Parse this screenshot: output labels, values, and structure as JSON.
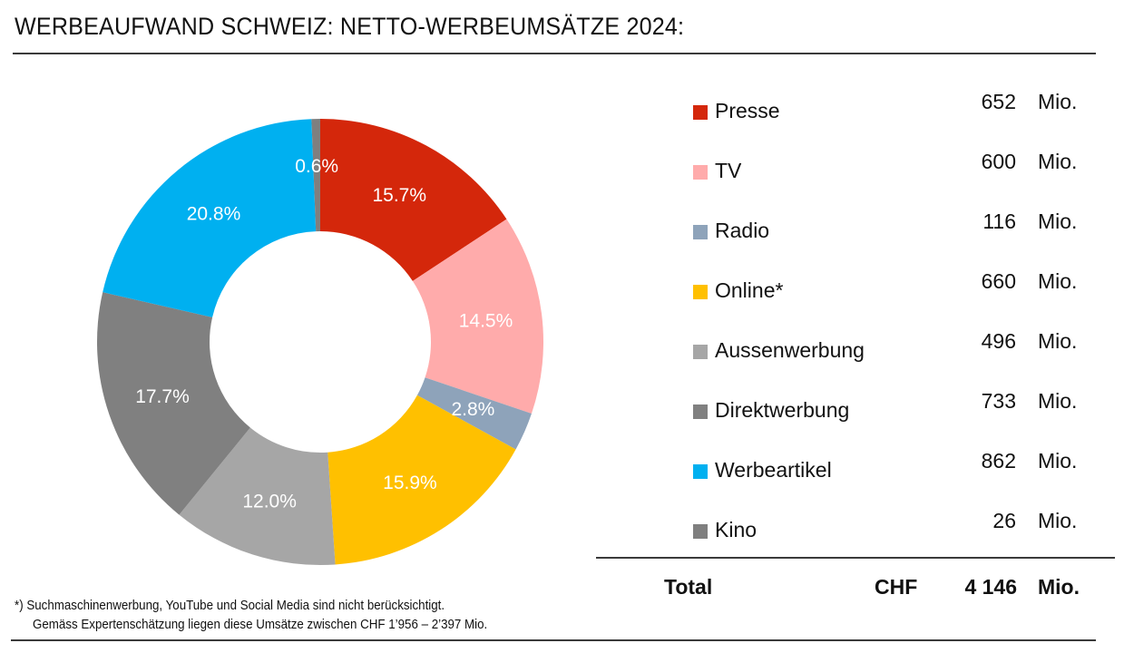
{
  "title": "WERBEAUFWAND SCHWEIZ: NETTO-WERBEUMSÄTZE 2024:",
  "chart_data": {
    "type": "pie",
    "subtype": "donut",
    "title": "WERBEAUFWAND SCHWEIZ: NETTO-WERBEUMSÄTZE 2024:",
    "start_angle_deg": 0,
    "direction": "clockwise",
    "slices": [
      {
        "name": "Presse",
        "value": 652,
        "percent_label": "15.7%",
        "color": "#D4270B"
      },
      {
        "name": "TV",
        "value": 600,
        "percent_label": "14.5%",
        "color": "#FFABAB"
      },
      {
        "name": "Radio",
        "value": 116,
        "percent_label": "2.8%",
        "color": "#8EA3BA"
      },
      {
        "name": "Online*",
        "value": 660,
        "percent_label": "15.9%",
        "color": "#FFC000"
      },
      {
        "name": "Aussenwerbung",
        "value": 496,
        "percent_label": "12.0%",
        "color": "#A6A6A6"
      },
      {
        "name": "Direktwerbung",
        "value": 733,
        "percent_label": "17.7%",
        "color": "#808080"
      },
      {
        "name": "Werbeartikel",
        "value": 862,
        "percent_label": "20.8%",
        "color": "#00B0F0"
      },
      {
        "name": "Kino",
        "value": 26,
        "percent_label": "0.6%",
        "color": "#7F7F7F"
      }
    ],
    "legend_position": "right",
    "unit": "Mio."
  },
  "legend": {
    "unit": "Mio.",
    "items": [
      {
        "name": "Presse",
        "value": "652"
      },
      {
        "name": "TV",
        "value": "600"
      },
      {
        "name": "Radio",
        "value": "116"
      },
      {
        "name": "Online*",
        "value": "660"
      },
      {
        "name": "Aussenwerbung",
        "value": "496"
      },
      {
        "name": "Direktwerbung",
        "value": "733"
      },
      {
        "name": "Werbeartikel",
        "value": "862"
      },
      {
        "name": "Kino",
        "value": "26"
      }
    ]
  },
  "total": {
    "label": "Total",
    "currency": "CHF",
    "value": "4 146",
    "unit": "Mio."
  },
  "footnote": {
    "line1": "*) Suchmaschinenwerbung, YouTube und Social Media sind nicht berücksichtigt.",
    "line2": "Gemäss Expertenschätzung liegen diese Umsätze zwischen CHF 1’956 – 2’397 Mio."
  }
}
